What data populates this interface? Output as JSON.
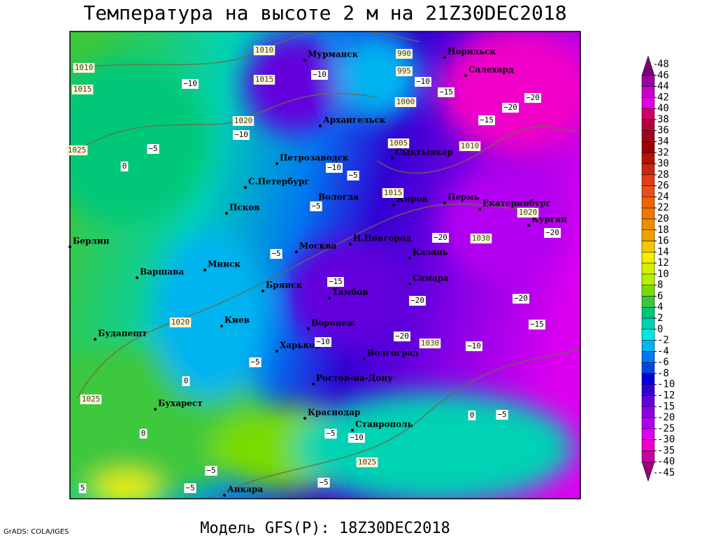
{
  "header": {
    "title": "Температура на высоте 2 м на 21Z30DEC2018"
  },
  "footer": {
    "model": "Модель GFS(P): 18Z30DEC2018",
    "credit": "GrADS: COLA/IGES"
  },
  "cities": [
    "Мурманск",
    "Архангельск",
    "Петрозаводск",
    "С.Петербург",
    "Псков",
    "Вологда",
    "Сыктывкар",
    "Киров",
    "Пермь",
    "Екатеринбург",
    "Курган",
    "Берлин",
    "Варшава",
    "Минск",
    "Москва",
    "Н.Новгород",
    "Казань",
    "Самара",
    "Брянск",
    "Тамбов",
    "Воронеж",
    "Киев",
    "Харьков",
    "Волгоград",
    "Будапешт",
    "Бухарест",
    "Ростов-на-Дону",
    "Краснодар",
    "Ставрополь",
    "Анкара",
    "Норильск",
    "Салехард"
  ],
  "isobar_labels": [
    "1010",
    "1015",
    "1010",
    "1015",
    "1020",
    "1025",
    "990",
    "995",
    "1000",
    "1005",
    "1010",
    "1015",
    "1020",
    "1030",
    "1020",
    "1030",
    "1025",
    "1025"
  ],
  "isotherm_labels": [
    "−10",
    "−10",
    "−10",
    "−15",
    "−20",
    "−20",
    "−15",
    "−10",
    "−5",
    "0",
    "−10",
    "−5",
    "−5",
    "−20",
    "−20",
    "−5",
    "−15",
    "−20",
    "−20",
    "−15",
    "−10",
    "−20",
    "−10",
    "−5",
    "0",
    "0",
    "−5",
    "−5",
    "−10",
    "0",
    "−5",
    "−5",
    "−5",
    "5"
  ],
  "colorbar": {
    "ticks": [
      48,
      46,
      44,
      42,
      40,
      38,
      36,
      34,
      32,
      30,
      28,
      26,
      24,
      22,
      20,
      18,
      16,
      14,
      12,
      10,
      8,
      6,
      4,
      2,
      0,
      -2,
      -4,
      -6,
      -8,
      -10,
      -12,
      -15,
      -20,
      -25,
      -30,
      -35,
      -40,
      -45
    ],
    "colors": [
      "#7a007a",
      "#a000a0",
      "#c800c8",
      "#e600e6",
      "#d20064",
      "#b4003c",
      "#a0001e",
      "#a00000",
      "#b41400",
      "#c82814",
      "#e03c1e",
      "#e65014",
      "#f06400",
      "#f07800",
      "#f08c00",
      "#f0a000",
      "#f0c800",
      "#f0f000",
      "#d2f000",
      "#b4f000",
      "#78dc00",
      "#3cc83c",
      "#00c878",
      "#00d2b4",
      "#00e6e6",
      "#00b4f0",
      "#0078f0",
      "#0046e6",
      "#0000dc",
      "#3200d2",
      "#6400dc",
      "#8c00e6",
      "#b400f0",
      "#dc00f0",
      "#f000c8",
      "#c800a0",
      "#960078"
    ]
  }
}
